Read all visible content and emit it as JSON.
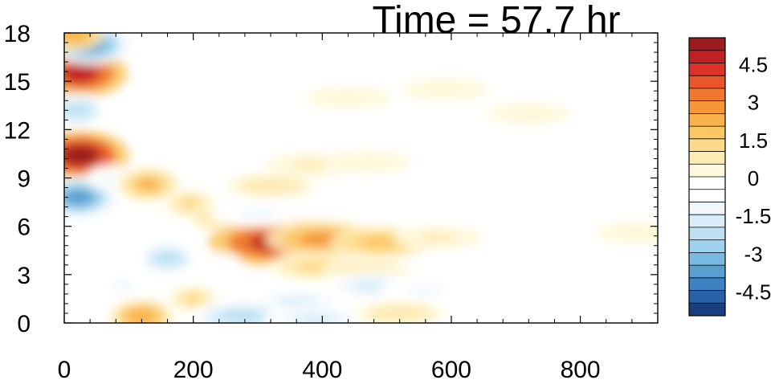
{
  "chart_data": {
    "type": "heatmap",
    "title": "Time = 57.7 hr",
    "xlabel": "",
    "ylabel": "",
    "xlim": [
      0,
      920
    ],
    "ylim": [
      0,
      18
    ],
    "x_ticks": [
      0,
      200,
      400,
      600,
      800
    ],
    "x_tick_labels": [
      "0",
      "200",
      "400",
      "600",
      "800"
    ],
    "y_ticks": [
      0,
      3,
      6,
      9,
      12,
      15,
      18
    ],
    "y_tick_labels": [
      "0",
      "3",
      "6",
      "9",
      "12",
      "15",
      "18"
    ],
    "grid": false,
    "colorbar": {
      "levels": [
        -5.5,
        -5,
        -4.5,
        -4,
        -3.5,
        -3,
        -2.5,
        -2,
        -1.5,
        -1,
        -0.5,
        0,
        0.5,
        1,
        1.5,
        2,
        2.5,
        3,
        3.5,
        4,
        4.5,
        5,
        5.5
      ],
      "tick_values": [
        4.5,
        3,
        1.5,
        0,
        -1.5,
        -3,
        -4.5
      ],
      "tick_labels": [
        "4.5",
        "3",
        "1.5",
        "0",
        "-1.5",
        "-3",
        "-4.5"
      ],
      "colors_top_to_bottom": [
        "#9b1b1f",
        "#c21f24",
        "#dc3227",
        "#e8562a",
        "#f0782e",
        "#f6983a",
        "#f9b24c",
        "#fbc765",
        "#fdda89",
        "#feebb4",
        "#fff8dc",
        "#ffffff",
        "#ffffff",
        "#f0f8fd",
        "#d9eef9",
        "#bde1f3",
        "#9dd2ee",
        "#7ab9e0",
        "#5a9fd2",
        "#3c81c0",
        "#2861a8",
        "#1a3f80"
      ]
    },
    "features": [
      {
        "x": 25,
        "y": 10.4,
        "value": 5.3
      },
      {
        "x": 25,
        "y": 15.5,
        "value": 5.0
      },
      {
        "x": 40,
        "y": 17.3,
        "value": -3.8
      },
      {
        "x": 15,
        "y": 17.9,
        "value": 2.2
      },
      {
        "x": 20,
        "y": 13.2,
        "value": -2.4
      },
      {
        "x": 22,
        "y": 7.8,
        "value": -3.6
      },
      {
        "x": 70,
        "y": 9.0,
        "value": -1.0
      },
      {
        "x": 130,
        "y": 8.6,
        "value": 2.1
      },
      {
        "x": 195,
        "y": 7.4,
        "value": 1.4
      },
      {
        "x": 230,
        "y": 6.5,
        "value": 1.0
      },
      {
        "x": 330,
        "y": 5.0,
        "value": 4.8
      },
      {
        "x": 400,
        "y": 5.2,
        "value": 2.8
      },
      {
        "x": 490,
        "y": 5.0,
        "value": 1.7
      },
      {
        "x": 580,
        "y": 5.3,
        "value": 0.7
      },
      {
        "x": 300,
        "y": 6.8,
        "value": -1.2
      },
      {
        "x": 320,
        "y": 8.5,
        "value": 0.8
      },
      {
        "x": 390,
        "y": 3.5,
        "value": 1.4
      },
      {
        "x": 470,
        "y": 3.2,
        "value": 0.8
      },
      {
        "x": 360,
        "y": 1.2,
        "value": -1.8
      },
      {
        "x": 480,
        "y": 2.3,
        "value": -1.8
      },
      {
        "x": 560,
        "y": 2.0,
        "value": -1.0
      },
      {
        "x": 160,
        "y": 4.0,
        "value": -2.4
      },
      {
        "x": 90,
        "y": 2.3,
        "value": -1.2
      },
      {
        "x": 120,
        "y": 0.4,
        "value": 2.3
      },
      {
        "x": 200,
        "y": 1.5,
        "value": 1.2
      },
      {
        "x": 275,
        "y": 0.4,
        "value": -2.2
      },
      {
        "x": 390,
        "y": 0.2,
        "value": -1.8
      },
      {
        "x": 520,
        "y": 0.6,
        "value": 0.8
      },
      {
        "x": 100,
        "y": 5.5,
        "value": -0.9
      },
      {
        "x": 240,
        "y": 3.6,
        "value": -0.9
      },
      {
        "x": 380,
        "y": 9.8,
        "value": 0.6
      },
      {
        "x": 470,
        "y": 10.0,
        "value": 0.5
      },
      {
        "x": 590,
        "y": 14.5,
        "value": 0.5
      },
      {
        "x": 440,
        "y": 14.0,
        "value": 0.4
      },
      {
        "x": 720,
        "y": 13.0,
        "value": 0.3
      },
      {
        "x": 890,
        "y": 5.6,
        "value": 0.3
      },
      {
        "x": 820,
        "y": 0.4,
        "value": -0.4
      }
    ]
  }
}
